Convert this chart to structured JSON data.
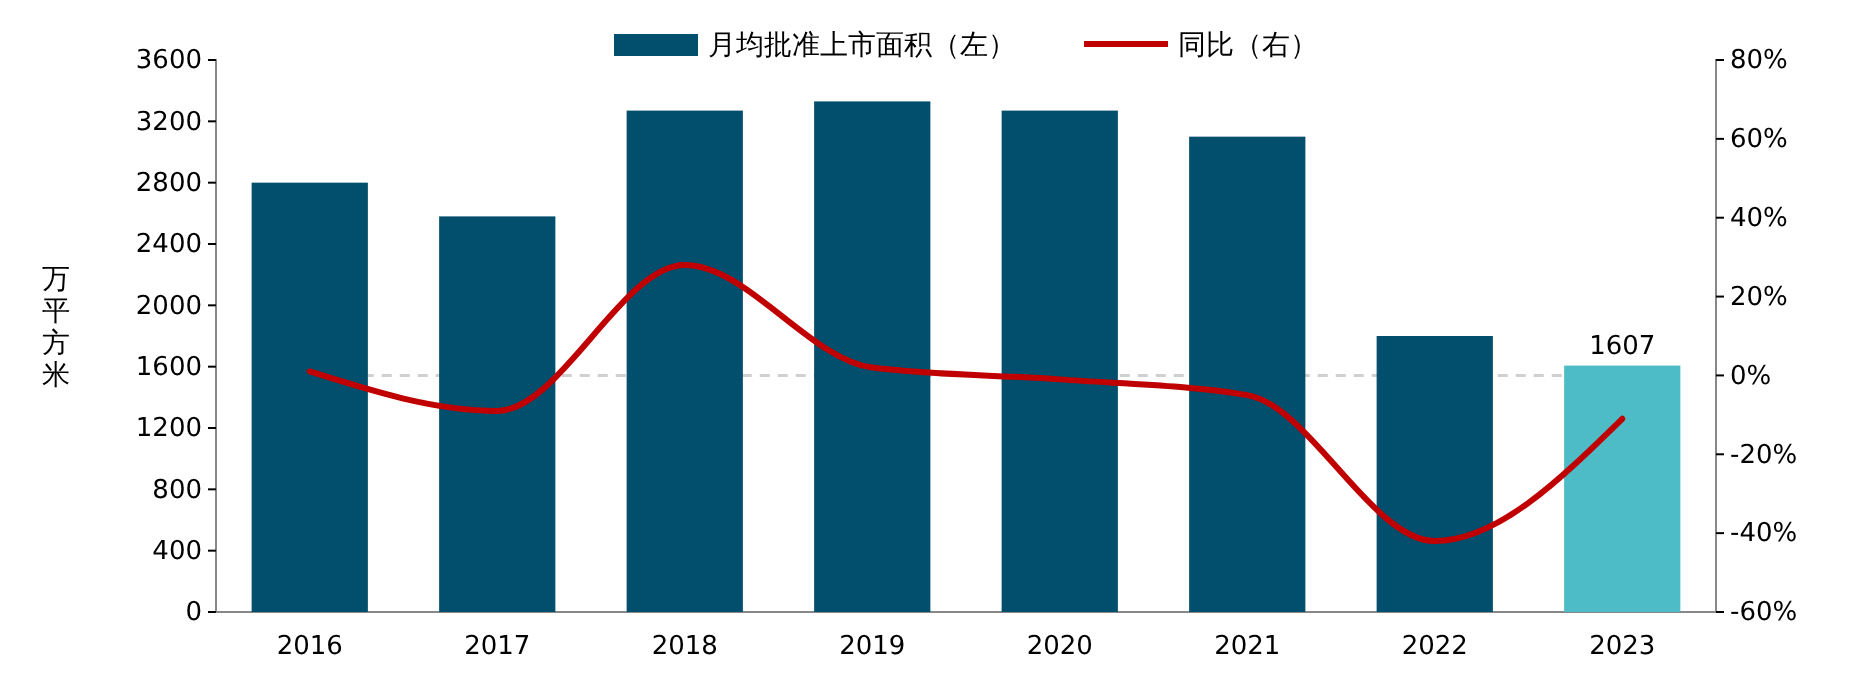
{
  "chart_data": {
    "type": "bar",
    "ylabel": "万平方米",
    "categories": [
      "2016",
      "2017",
      "2018",
      "2019",
      "2020",
      "2021",
      "2022",
      "2023"
    ],
    "series": [
      {
        "name": "月均批准上市面积（左）",
        "color": "#024f6d",
        "colors": [
          "#024f6d",
          "#024f6d",
          "#024f6d",
          "#024f6d",
          "#024f6d",
          "#024f6d",
          "#024f6d",
          "#4dbcc6"
        ],
        "values": [
          2800,
          2580,
          3270,
          3330,
          3270,
          3100,
          1800,
          1607
        ],
        "value_labels": [
          null,
          null,
          null,
          null,
          null,
          null,
          null,
          "1607"
        ]
      },
      {
        "name": "同比（右）",
        "type": "line",
        "axis": "y2",
        "color": "#c00000",
        "values": [
          1,
          -9,
          28,
          2,
          -1,
          -5,
          -42,
          -11
        ]
      }
    ],
    "ylim": [
      0,
      3600
    ],
    "yticks": [
      0,
      400,
      800,
      1200,
      1600,
      2000,
      2400,
      2800,
      3200,
      3600
    ],
    "y2lim": [
      -60,
      80
    ],
    "y2ticks": [
      {
        "value": -60,
        "label": "-60%"
      },
      {
        "value": -40,
        "label": "-40%"
      },
      {
        "value": -20,
        "label": "-20%"
      },
      {
        "value": 0,
        "label": "0%"
      },
      {
        "value": 20,
        "label": "20%"
      },
      {
        "value": 40,
        "label": "40%"
      },
      {
        "value": 60,
        "label": "60%"
      },
      {
        "value": 80,
        "label": "80%"
      }
    ],
    "ref_lines": [
      {
        "axis": "y2",
        "value": 0,
        "label": null,
        "color": "#d0d0d0",
        "line_style": "dashed"
      }
    ],
    "grid": false,
    "legend": "top",
    "marker": "none",
    "line_style": "solid"
  }
}
